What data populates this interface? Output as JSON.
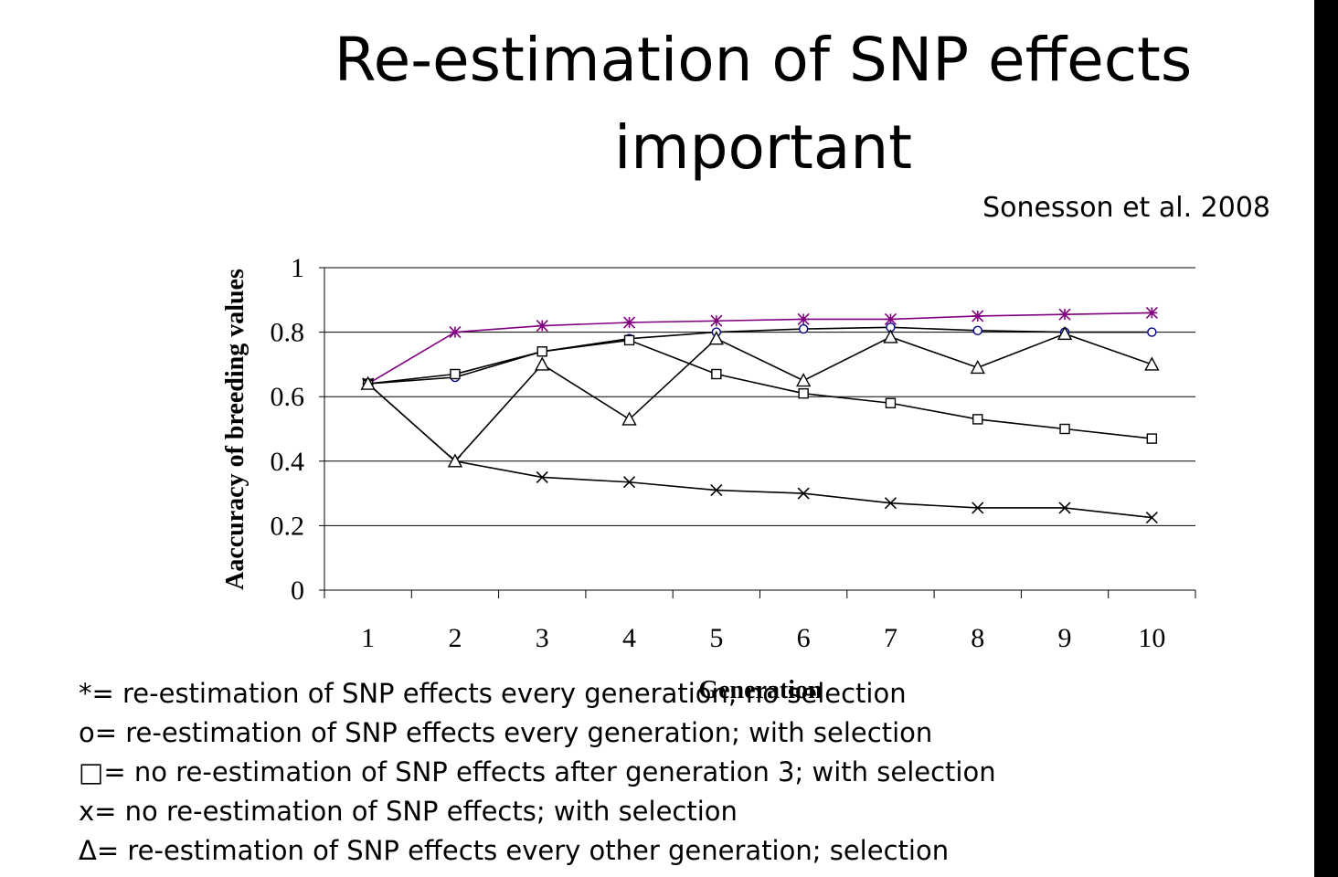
{
  "slide": {
    "title_line1": "Re-estimation of SNP effects",
    "title_line2": "important",
    "citation": "Sonesson et al. 2008"
  },
  "chart_data": {
    "type": "line",
    "title": "",
    "xlabel": "Generation",
    "ylabel": "Aaccuracy of breeding values",
    "categories": [
      "1",
      "2",
      "3",
      "4",
      "5",
      "6",
      "7",
      "8",
      "9",
      "10"
    ],
    "yticks": [
      "0",
      "0.2",
      "0.4",
      "0.6",
      "0.8",
      "1"
    ],
    "ylim": [
      0,
      1
    ],
    "grid": true,
    "series": [
      {
        "name": "*",
        "marker": "star",
        "color": "#800080",
        "values": [
          0.64,
          0.8,
          0.82,
          0.83,
          0.835,
          0.84,
          0.84,
          0.85,
          0.855,
          0.86
        ]
      },
      {
        "name": "o",
        "marker": "circle",
        "color": "#000000",
        "marker_color": "#00008b",
        "values": [
          0.64,
          0.66,
          0.74,
          0.78,
          0.8,
          0.81,
          0.815,
          0.805,
          0.8,
          0.8
        ]
      },
      {
        "name": "square",
        "marker": "square",
        "color": "#000000",
        "values": [
          0.64,
          0.67,
          0.74,
          0.775,
          0.67,
          0.61,
          0.58,
          0.53,
          0.5,
          0.47
        ]
      },
      {
        "name": "x",
        "marker": "x",
        "color": "#000000",
        "values": [
          0.64,
          0.4,
          0.35,
          0.335,
          0.31,
          0.3,
          0.27,
          0.255,
          0.255,
          0.225
        ]
      },
      {
        "name": "triangle",
        "marker": "triangle",
        "color": "#000000",
        "values": [
          0.64,
          0.4,
          0.7,
          0.53,
          0.78,
          0.65,
          0.785,
          0.69,
          0.795,
          0.7
        ]
      }
    ]
  },
  "legend": [
    "*= re-estimation of SNP effects every generation; no selection",
    "o= re-estimation of SNP effects every generation; with selection",
    "□= no re-estimation of SNP effects after generation 3; with selection",
    "x= no re-estimation of SNP effects; with selection",
    "Δ= re-estimation of SNP effects every other generation; selection"
  ]
}
